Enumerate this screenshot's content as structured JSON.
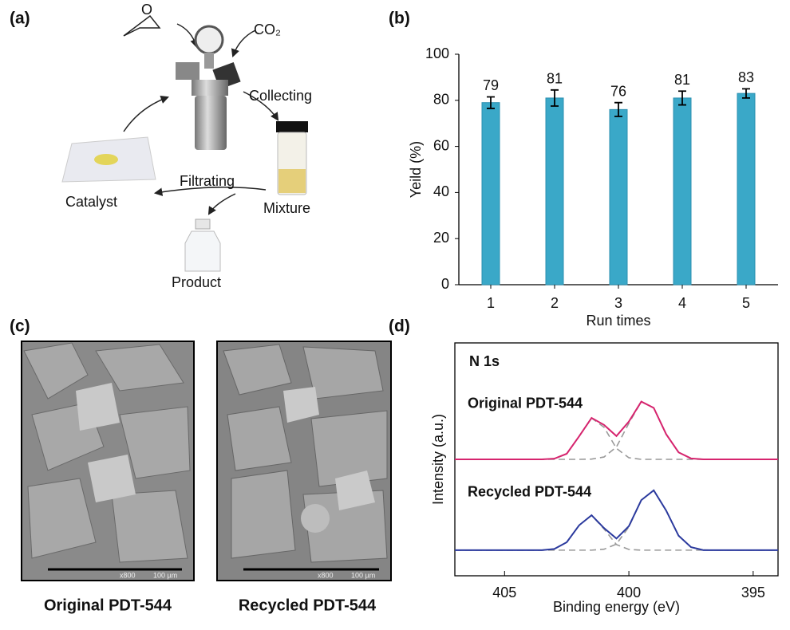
{
  "panel_labels": [
    "(a)",
    "(b)",
    "(c)",
    "(d)"
  ],
  "scheme": {
    "epoxide_atom": "O",
    "gas": "CO₂",
    "steps": [
      "Collecting",
      "Filtrating"
    ],
    "items": [
      "Catalyst",
      "Mixture",
      "Product"
    ]
  },
  "sem": [
    {
      "caption": "Original PDT-544",
      "magnification": "x800",
      "scale": "100 µm"
    },
    {
      "caption": "Recycled PDT-544",
      "magnification": "x800",
      "scale": "100 µm"
    }
  ],
  "chart_data": [
    {
      "type": "bar",
      "categories": [
        "1",
        "2",
        "3",
        "4",
        "5"
      ],
      "values": [
        79,
        81,
        76,
        81,
        83
      ],
      "errors": [
        2.5,
        3.5,
        3,
        3,
        2
      ],
      "color": "#3aa8c8",
      "ylim": [
        0,
        100
      ],
      "yticks": [
        0,
        20,
        40,
        60,
        80,
        100
      ],
      "xlabel": "Run times",
      "ylabel": "Yeild (%)"
    },
    {
      "type": "line",
      "annotation": "N 1s",
      "xlabel": "Binding energy (eV)",
      "ylabel": "Intensity (a.u.)",
      "xlim": [
        407,
        394
      ],
      "ylim": [
        0,
        10
      ],
      "xticks": [
        405,
        400,
        395
      ],
      "x": [
        407,
        406.5,
        406,
        405.5,
        405,
        404.5,
        404,
        403.5,
        403,
        402.5,
        402,
        401.5,
        401,
        400.5,
        400,
        399.5,
        399,
        398.5,
        398,
        397.5,
        397,
        396.5,
        396,
        395.5,
        395,
        394.5,
        394
      ],
      "series": [
        {
          "color": "#999999",
          "dashed": true,
          "values": [
            5,
            5,
            5,
            5,
            5,
            5,
            5,
            5,
            5.03,
            5.24,
            5.99,
            6.77,
            6.38,
            5.47,
            5.07,
            5,
            5,
            5,
            5,
            5,
            5,
            5,
            5,
            5,
            5,
            5,
            5
          ]
        },
        {
          "color": "#999999",
          "dashed": true,
          "values": [
            5,
            5,
            5,
            5,
            5,
            5,
            5,
            5,
            5,
            5,
            5,
            5.01,
            5.1,
            5.53,
            6.55,
            7.48,
            7.21,
            6.08,
            5.3,
            5.04,
            5,
            5,
            5,
            5,
            5,
            5,
            5
          ]
        },
        {
          "name": "Original PDT-544",
          "color": "#d6246e",
          "values": [
            5,
            5,
            5,
            5,
            5,
            5,
            5,
            5,
            5.03,
            5.24,
            5.99,
            6.78,
            6.48,
            6.0,
            6.62,
            7.48,
            7.21,
            6.08,
            5.3,
            5.04,
            5,
            5,
            5,
            5,
            5,
            5,
            5
          ]
        },
        {
          "color": "#999999",
          "dashed": true,
          "values": [
            1.1,
            1.1,
            1.1,
            1.1,
            1.1,
            1.1,
            1.1,
            1.1,
            1.15,
            1.44,
            2.17,
            2.6,
            2.01,
            1.34,
            1.13,
            1.1,
            1.1,
            1.1,
            1.1,
            1.1,
            1.1,
            1.1,
            1.1,
            1.1,
            1.1,
            1.1,
            1.1
          ]
        },
        {
          "color": "#999999",
          "dashed": true,
          "values": [
            1.1,
            1.1,
            1.1,
            1.1,
            1.1,
            1.1,
            1.1,
            1.1,
            1.1,
            1.1,
            1.1,
            1.1,
            1.14,
            1.36,
            2.1,
            3.25,
            3.67,
            2.8,
            1.72,
            1.23,
            1.11,
            1.1,
            1.1,
            1.1,
            1.1,
            1.1,
            1.1
          ]
        },
        {
          "name": "Recycled PDT-544",
          "color": "#2b3a9e",
          "values": [
            1.1,
            1.1,
            1.1,
            1.1,
            1.1,
            1.1,
            1.1,
            1.1,
            1.15,
            1.44,
            2.17,
            2.6,
            2.05,
            1.6,
            2.13,
            3.25,
            3.67,
            2.8,
            1.72,
            1.23,
            1.1,
            1.1,
            1.1,
            1.1,
            1.1,
            1.1,
            1.1
          ]
        }
      ]
    }
  ]
}
